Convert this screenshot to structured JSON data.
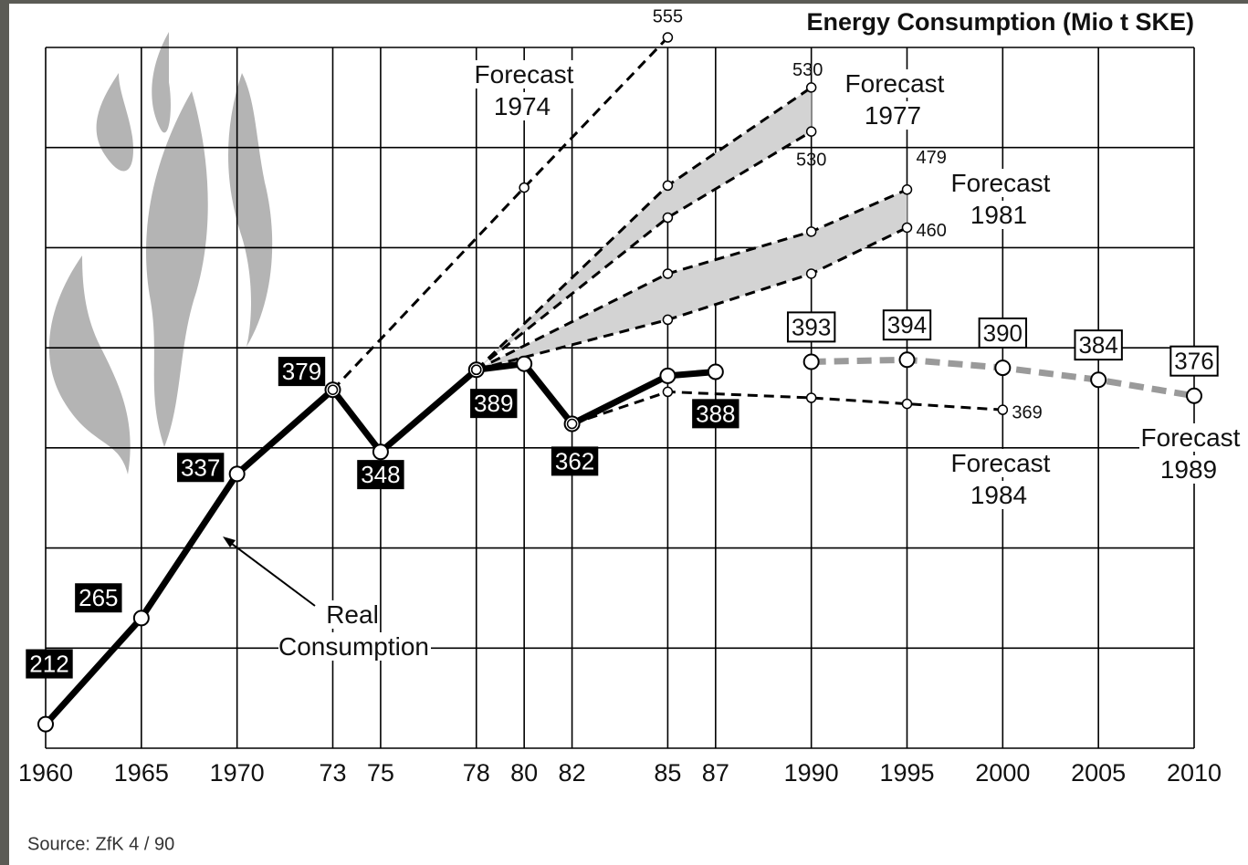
{
  "chart_data": {
    "type": "line",
    "title": "Energy Consumption (Mio t SKE)",
    "source": "Source: ZfK 4 / 90",
    "xticks": [
      1960,
      1965,
      1970,
      {
        "value": 1973,
        "label": "73"
      },
      {
        "value": 1975,
        "label": "75"
      },
      {
        "value": 1978,
        "label": "78"
      },
      {
        "value": 1980,
        "label": "80"
      },
      {
        "value": 1982,
        "label": "82"
      },
      {
        "value": 1985,
        "label": "85"
      },
      {
        "value": 1987,
        "label": "87"
      },
      1990,
      1995,
      2000,
      2005,
      2010
    ],
    "ylim": [
      200,
      550
    ],
    "yticks": [
      200,
      250,
      300,
      350,
      400,
      450,
      500,
      550
    ],
    "grid": true,
    "band_color": "#d3d3d3",
    "series": [
      {
        "name": "Real Consumption",
        "color": "#000000",
        "line": "solid",
        "label_style": "dark",
        "x": [
          1960,
          1965,
          1970,
          1973,
          1975,
          1978,
          1980,
          1982,
          1985,
          1987
        ],
        "values": [
          212,
          265,
          337,
          379,
          348,
          389,
          392,
          362,
          386,
          388
        ],
        "value_labels": [
          "212",
          "265",
          "337",
          "379",
          "348",
          "389",
          null,
          "362",
          null,
          "388"
        ]
      },
      {
        "name": "Forecast 1974",
        "color": "#000000",
        "line": "dashed",
        "label_style": "plain",
        "x": [
          1973,
          1980,
          1985
        ],
        "values": [
          379,
          480,
          555
        ],
        "value_labels": [
          null,
          null,
          "555"
        ]
      },
      {
        "name": "Forecast 1977",
        "color": "#000000",
        "line": "dashed",
        "label_style": "plain",
        "x": [
          1978,
          1985,
          1990
        ],
        "values": [
          389,
          481,
          530
        ],
        "low": [
          389,
          465,
          508
        ],
        "value_labels": [
          null,
          null,
          "530"
        ]
      },
      {
        "name": "Forecast 1981",
        "color": "#000000",
        "line": "dashed",
        "label_style": "plain",
        "x": [
          1978,
          1985,
          1990,
          1995
        ],
        "values": [
          389,
          437,
          458,
          479
        ],
        "low": [
          389,
          414,
          437,
          460
        ],
        "value_labels": [
          null,
          null,
          null,
          "479"
        ],
        "low_labels": [
          null,
          null,
          null,
          "460"
        ]
      },
      {
        "name": "Forecast 1984",
        "color": "#000000",
        "line": "dashed",
        "label_style": "plain",
        "x": [
          1982,
          1985,
          1990,
          1995,
          2000
        ],
        "values": [
          362,
          378,
          375,
          372,
          369
        ],
        "value_labels": [
          null,
          null,
          null,
          null,
          "369"
        ]
      },
      {
        "name": "Forecast 1989",
        "color": "#9a9a9a",
        "line": "dashed",
        "label_style": "boxed",
        "x": [
          1990,
          1995,
          2000,
          2005,
          2010
        ],
        "values": [
          393,
          394,
          390,
          384,
          376
        ],
        "value_labels": [
          "393",
          "394",
          "390",
          "384",
          "376"
        ]
      }
    ],
    "annotations": [
      {
        "text": "530"
      }
    ]
  }
}
